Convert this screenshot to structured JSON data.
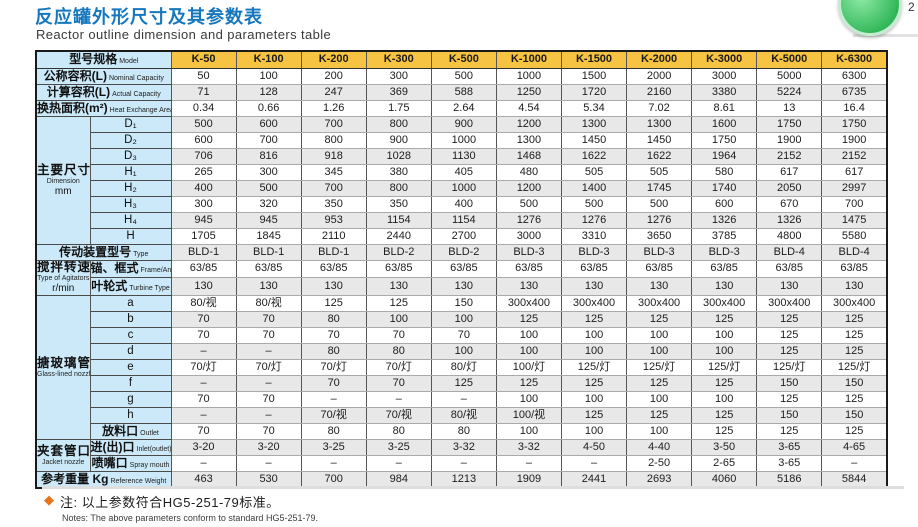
{
  "title_zh": "反应罐外形尺寸及其参数表",
  "title_en": "Reactor outline dimension and parameters table",
  "topbar": {
    "badge_count": "2",
    "download_arrow": "↓"
  },
  "colors": {
    "accent_blue": "#1677bd",
    "header_orange": "#f7c342",
    "label_blue": "#cbe9f9",
    "row_shade": "#e8e8e8",
    "note_diamond": "#e9731d",
    "button_green": "#35b95c"
  },
  "table": {
    "header": {
      "label_zh": "型号规格",
      "label_en": "Model",
      "models": [
        "K-50",
        "K-100",
        "K-200",
        "K-300",
        "K-500",
        "K-1000",
        "K-1500",
        "K-2000",
        "K-3000",
        "K-5000",
        "K-6300"
      ]
    },
    "sections": [
      {
        "zh": "公称容积(L)",
        "en": "Nominal Capacity",
        "values": [
          "50",
          "100",
          "200",
          "300",
          "500",
          "1000",
          "1500",
          "2000",
          "3000",
          "5000",
          "6300"
        ]
      },
      {
        "zh": "计算容积(L)",
        "en": "Actual Capacity",
        "values": [
          "71",
          "128",
          "247",
          "369",
          "588",
          "1250",
          "1720",
          "2160",
          "3380",
          "5224",
          "6735"
        ]
      },
      {
        "zh": "换热面积(m²)",
        "en": "Heat Exchange Area",
        "values": [
          "0.34",
          "0.66",
          "1.26",
          "1.75",
          "2.64",
          "4.54",
          "5.34",
          "7.02",
          "8.61",
          "13",
          "16.4"
        ]
      },
      {
        "zh": "主要尺寸",
        "en": "Dimension",
        "en2": "mm",
        "rows": [
          {
            "sub": "D₁",
            "values": [
              "500",
              "600",
              "700",
              "800",
              "900",
              "1200",
              "1300",
              "1300",
              "1600",
              "1750",
              "1750"
            ]
          },
          {
            "sub": "D₂",
            "values": [
              "600",
              "700",
              "800",
              "900",
              "1000",
              "1300",
              "1450",
              "1450",
              "1750",
              "1900",
              "1900"
            ]
          },
          {
            "sub": "D₃",
            "values": [
              "706",
              "816",
              "918",
              "1028",
              "1130",
              "1468",
              "1622",
              "1622",
              "1964",
              "2152",
              "2152"
            ]
          },
          {
            "sub": "H₁",
            "values": [
              "265",
              "300",
              "345",
              "380",
              "405",
              "480",
              "505",
              "505",
              "580",
              "617",
              "617"
            ]
          },
          {
            "sub": "H₂",
            "values": [
              "400",
              "500",
              "700",
              "800",
              "1000",
              "1200",
              "1400",
              "1745",
              "1740",
              "2050",
              "2997"
            ]
          },
          {
            "sub": "H₃",
            "values": [
              "300",
              "320",
              "350",
              "350",
              "400",
              "500",
              "500",
              "500",
              "600",
              "670",
              "700"
            ]
          },
          {
            "sub": "H₄",
            "values": [
              "945",
              "945",
              "953",
              "1154",
              "1154",
              "1276",
              "1276",
              "1276",
              "1326",
              "1326",
              "1475"
            ]
          },
          {
            "sub": "H",
            "values": [
              "1705",
              "1845",
              "2110",
              "2440",
              "2700",
              "3000",
              "3310",
              "3650",
              "3785",
              "4800",
              "5580"
            ]
          }
        ]
      },
      {
        "zh": "传动装置型号",
        "en": "Type",
        "values": [
          "BLD-1",
          "BLD-1",
          "BLD-1",
          "BLD-2",
          "BLD-2",
          "BLD-3",
          "BLD-3",
          "BLD-3",
          "BLD-3",
          "BLD-4",
          "BLD-4"
        ]
      },
      {
        "zh": "搅拌转速",
        "en": "Type of Agitators",
        "en2": "r/min",
        "rows": [
          {
            "sub_zh": "锚、框式",
            "sub_en": "Frame/Anchor Type",
            "values": [
              "63/85",
              "63/85",
              "63/85",
              "63/85",
              "63/85",
              "63/85",
              "63/85",
              "63/85",
              "63/85",
              "63/85",
              "63/85"
            ]
          },
          {
            "sub_zh": "叶轮式",
            "sub_en": "Turbine Type",
            "values": [
              "130",
              "130",
              "130",
              "130",
              "130",
              "130",
              "130",
              "130",
              "130",
              "130",
              "130"
            ]
          }
        ]
      },
      {
        "zh": "搪玻璃管口",
        "en": "Glass-lined nozzle",
        "rows": [
          {
            "sub": "a",
            "values": [
              "80/视",
              "80/视",
              "125",
              "125",
              "150",
              "300x400",
              "300x400",
              "300x400",
              "300x400",
              "300x400",
              "300x400"
            ]
          },
          {
            "sub": "b",
            "values": [
              "70",
              "70",
              "80",
              "100",
              "100",
              "125",
              "125",
              "125",
              "125",
              "125",
              "125"
            ]
          },
          {
            "sub": "c",
            "values": [
              "70",
              "70",
              "70",
              "70",
              "70",
              "100",
              "100",
              "100",
              "100",
              "125",
              "125"
            ]
          },
          {
            "sub": "d",
            "values": [
              "–",
              "–",
              "80",
              "80",
              "100",
              "100",
              "100",
              "100",
              "100",
              "125",
              "125"
            ]
          },
          {
            "sub": "e",
            "values": [
              "70/灯",
              "70/灯",
              "70/灯",
              "70/灯",
              "80/灯",
              "100/灯",
              "125/灯",
              "125/灯",
              "125/灯",
              "125/灯",
              "125/灯"
            ]
          },
          {
            "sub": "f",
            "values": [
              "–",
              "–",
              "70",
              "70",
              "125",
              "125",
              "125",
              "125",
              "125",
              "150",
              "150"
            ]
          },
          {
            "sub": "g",
            "values": [
              "70",
              "70",
              "–",
              "–",
              "–",
              "100",
              "100",
              "100",
              "100",
              "125",
              "125"
            ]
          },
          {
            "sub": "h",
            "values": [
              "–",
              "–",
              "70/视",
              "70/视",
              "80/视",
              "100/视",
              "125",
              "125",
              "125",
              "150",
              "150"
            ]
          },
          {
            "sub_zh": "放料口",
            "sub_en": "Outlet",
            "values": [
              "70",
              "70",
              "80",
              "80",
              "80",
              "100",
              "100",
              "100",
              "125",
              "125",
              "125"
            ]
          }
        ]
      },
      {
        "zh": "夹套管口",
        "en": "Jacket nozzle",
        "rows": [
          {
            "sub_zh": "进(出)口",
            "sub_en": "Inlet(outlet)",
            "values": [
              "3-20",
              "3-20",
              "3-25",
              "3-25",
              "3-32",
              "3-32",
              "4-50",
              "4-40",
              "3-50",
              "3-65",
              "4-65"
            ]
          },
          {
            "sub_zh": "喷嘴口",
            "sub_en": "Spray mouth",
            "values": [
              "–",
              "–",
              "–",
              "–",
              "–",
              "–",
              "–",
              "2-50",
              "2-65",
              "3-65",
              "–"
            ]
          }
        ]
      },
      {
        "zh": "参考重量 Kg",
        "en": "Reference Weight",
        "values": [
          "463",
          "530",
          "700",
          "984",
          "1213",
          "1909",
          "2441",
          "2693",
          "4060",
          "5186",
          "5844"
        ]
      }
    ]
  },
  "notes": {
    "diamond": "◆",
    "zh": "注: 以上参数符合HG5-251-79标准。",
    "en": "Notes: The above parameters conform to standard HG5-251-79."
  }
}
